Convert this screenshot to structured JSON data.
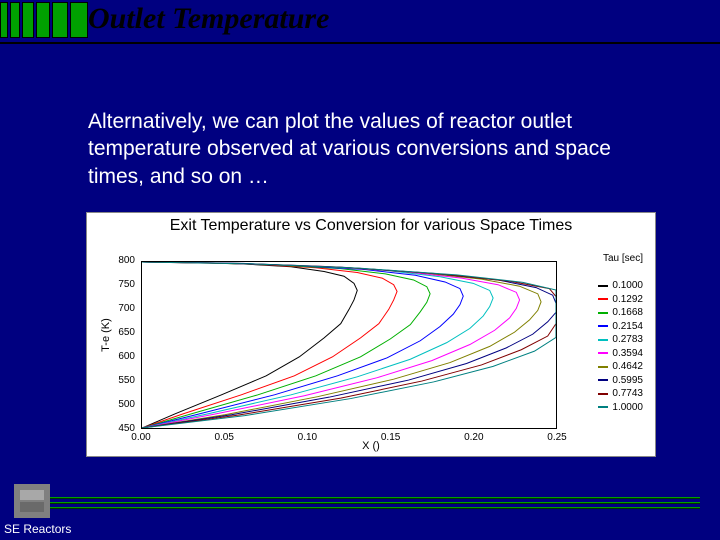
{
  "slide": {
    "title": "Outlet Temperature",
    "title_fontsize": 30,
    "body": "Alternatively, we can plot the values of reactor outlet temperature observed at various conversions and space times, and so on …",
    "body_fontsize": 21,
    "footer_label": "SE Reactors",
    "footer_fontsize": 12,
    "background_color": "#000080",
    "accent_color": "#00a000"
  },
  "header_bars": {
    "count": 6,
    "widths": [
      8,
      10,
      12,
      14,
      16,
      18
    ],
    "height": 36,
    "color": "#00a000"
  },
  "chart": {
    "title": "Exit Temperature vs Conversion for various Space Times",
    "title_fontsize": 16,
    "ylabel": "T-e (K)",
    "xlabel": "X ()",
    "label_fontsize": 11,
    "tick_fontsize": 10,
    "legend_title": "Tau [sec]",
    "legend_fontsize": 10,
    "xlim": [
      0.0,
      0.25
    ],
    "ylim": [
      450,
      800
    ],
    "xticks": [
      0.0,
      0.05,
      0.1,
      0.15,
      0.2,
      0.25
    ],
    "yticks": [
      450,
      500,
      550,
      600,
      650,
      700,
      750,
      800
    ],
    "background_color": "#ffffff",
    "series_colors": [
      "#000000",
      "#ff0000",
      "#00b000",
      "#0000ff",
      "#00c0c0",
      "#ff00ff",
      "#808000",
      "#000080",
      "#800000",
      "#008080"
    ],
    "series": [
      {
        "tau": "0.1000",
        "x": [
          0,
          0.02,
          0.048,
          0.075,
          0.095,
          0.11,
          0.12,
          0.125,
          0.128,
          0.13,
          0.128,
          0.122,
          0.11,
          0.09,
          0.06,
          0.03,
          0.0
        ],
        "y": [
          450,
          480,
          520,
          560,
          600,
          640,
          670,
          700,
          720,
          740,
          755,
          770,
          780,
          790,
          796,
          799,
          800
        ]
      },
      {
        "tau": "0.1292",
        "x": [
          0,
          0.025,
          0.06,
          0.092,
          0.115,
          0.132,
          0.143,
          0.149,
          0.152,
          0.154,
          0.152,
          0.145,
          0.13,
          0.105,
          0.07,
          0.035,
          0.0
        ],
        "y": [
          450,
          480,
          520,
          560,
          600,
          640,
          670,
          700,
          720,
          738,
          752,
          766,
          778,
          788,
          795,
          799,
          800
        ]
      },
      {
        "tau": "0.1668",
        "x": [
          0,
          0.03,
          0.07,
          0.105,
          0.132,
          0.15,
          0.162,
          0.168,
          0.172,
          0.174,
          0.172,
          0.164,
          0.147,
          0.12,
          0.08,
          0.04,
          0.0
        ],
        "y": [
          450,
          480,
          520,
          560,
          600,
          638,
          668,
          695,
          715,
          733,
          748,
          762,
          775,
          786,
          794,
          798,
          800
        ]
      },
      {
        "tau": "0.2154",
        "x": [
          0,
          0.035,
          0.08,
          0.118,
          0.148,
          0.168,
          0.18,
          0.188,
          0.192,
          0.194,
          0.192,
          0.183,
          0.165,
          0.135,
          0.09,
          0.045,
          0.0
        ],
        "y": [
          450,
          480,
          520,
          560,
          598,
          634,
          664,
          690,
          710,
          728,
          744,
          758,
          772,
          784,
          793,
          798,
          800
        ]
      },
      {
        "tau": "0.2783",
        "x": [
          0,
          0.04,
          0.09,
          0.13,
          0.162,
          0.184,
          0.198,
          0.206,
          0.21,
          0.212,
          0.21,
          0.2,
          0.18,
          0.148,
          0.1,
          0.05,
          0.0
        ],
        "y": [
          450,
          480,
          520,
          558,
          595,
          630,
          660,
          686,
          706,
          724,
          740,
          755,
          769,
          782,
          792,
          798,
          800
        ]
      },
      {
        "tau": "0.3594",
        "x": [
          0,
          0.045,
          0.098,
          0.142,
          0.175,
          0.198,
          0.213,
          0.222,
          0.226,
          0.228,
          0.226,
          0.215,
          0.193,
          0.158,
          0.108,
          0.054,
          0.0
        ],
        "y": [
          450,
          480,
          518,
          556,
          592,
          626,
          656,
          682,
          702,
          720,
          736,
          752,
          766,
          780,
          791,
          797,
          800
        ]
      },
      {
        "tau": "0.4642",
        "x": [
          0,
          0.05,
          0.106,
          0.152,
          0.186,
          0.21,
          0.225,
          0.234,
          0.239,
          0.241,
          0.239,
          0.228,
          0.205,
          0.168,
          0.115,
          0.058,
          0.0
        ],
        "y": [
          450,
          478,
          516,
          553,
          588,
          622,
          652,
          678,
          698,
          716,
          733,
          749,
          764,
          778,
          790,
          797,
          800
        ]
      },
      {
        "tau": "0.5995",
        "x": [
          0,
          0.054,
          0.113,
          0.161,
          0.196,
          0.22,
          0.236,
          0.245,
          0.25,
          0.25,
          0.248,
          0.238,
          0.215,
          0.176,
          0.121,
          0.061,
          0.0
        ],
        "y": [
          450,
          478,
          515,
          551,
          586,
          619,
          648,
          674,
          694,
          713,
          730,
          746,
          762,
          776,
          789,
          797,
          800
        ]
      },
      {
        "tau": "0.7743",
        "x": [
          0,
          0.058,
          0.12,
          0.169,
          0.205,
          0.229,
          0.245,
          0.25,
          0.25,
          0.25,
          0.25,
          0.246,
          0.223,
          0.183,
          0.126,
          0.063,
          0.0
        ],
        "y": [
          450,
          477,
          513,
          549,
          583,
          615,
          644,
          670,
          691,
          710,
          727,
          744,
          759,
          774,
          788,
          796,
          800
        ]
      },
      {
        "tau": "1.0000",
        "x": [
          0,
          0.062,
          0.126,
          0.176,
          0.212,
          0.237,
          0.25,
          0.25,
          0.25,
          0.25,
          0.25,
          0.25,
          0.23,
          0.19,
          0.131,
          0.066,
          0.0
        ],
        "y": [
          450,
          476,
          512,
          547,
          580,
          612,
          641,
          667,
          688,
          707,
          725,
          741,
          757,
          773,
          787,
          796,
          800
        ]
      }
    ]
  }
}
